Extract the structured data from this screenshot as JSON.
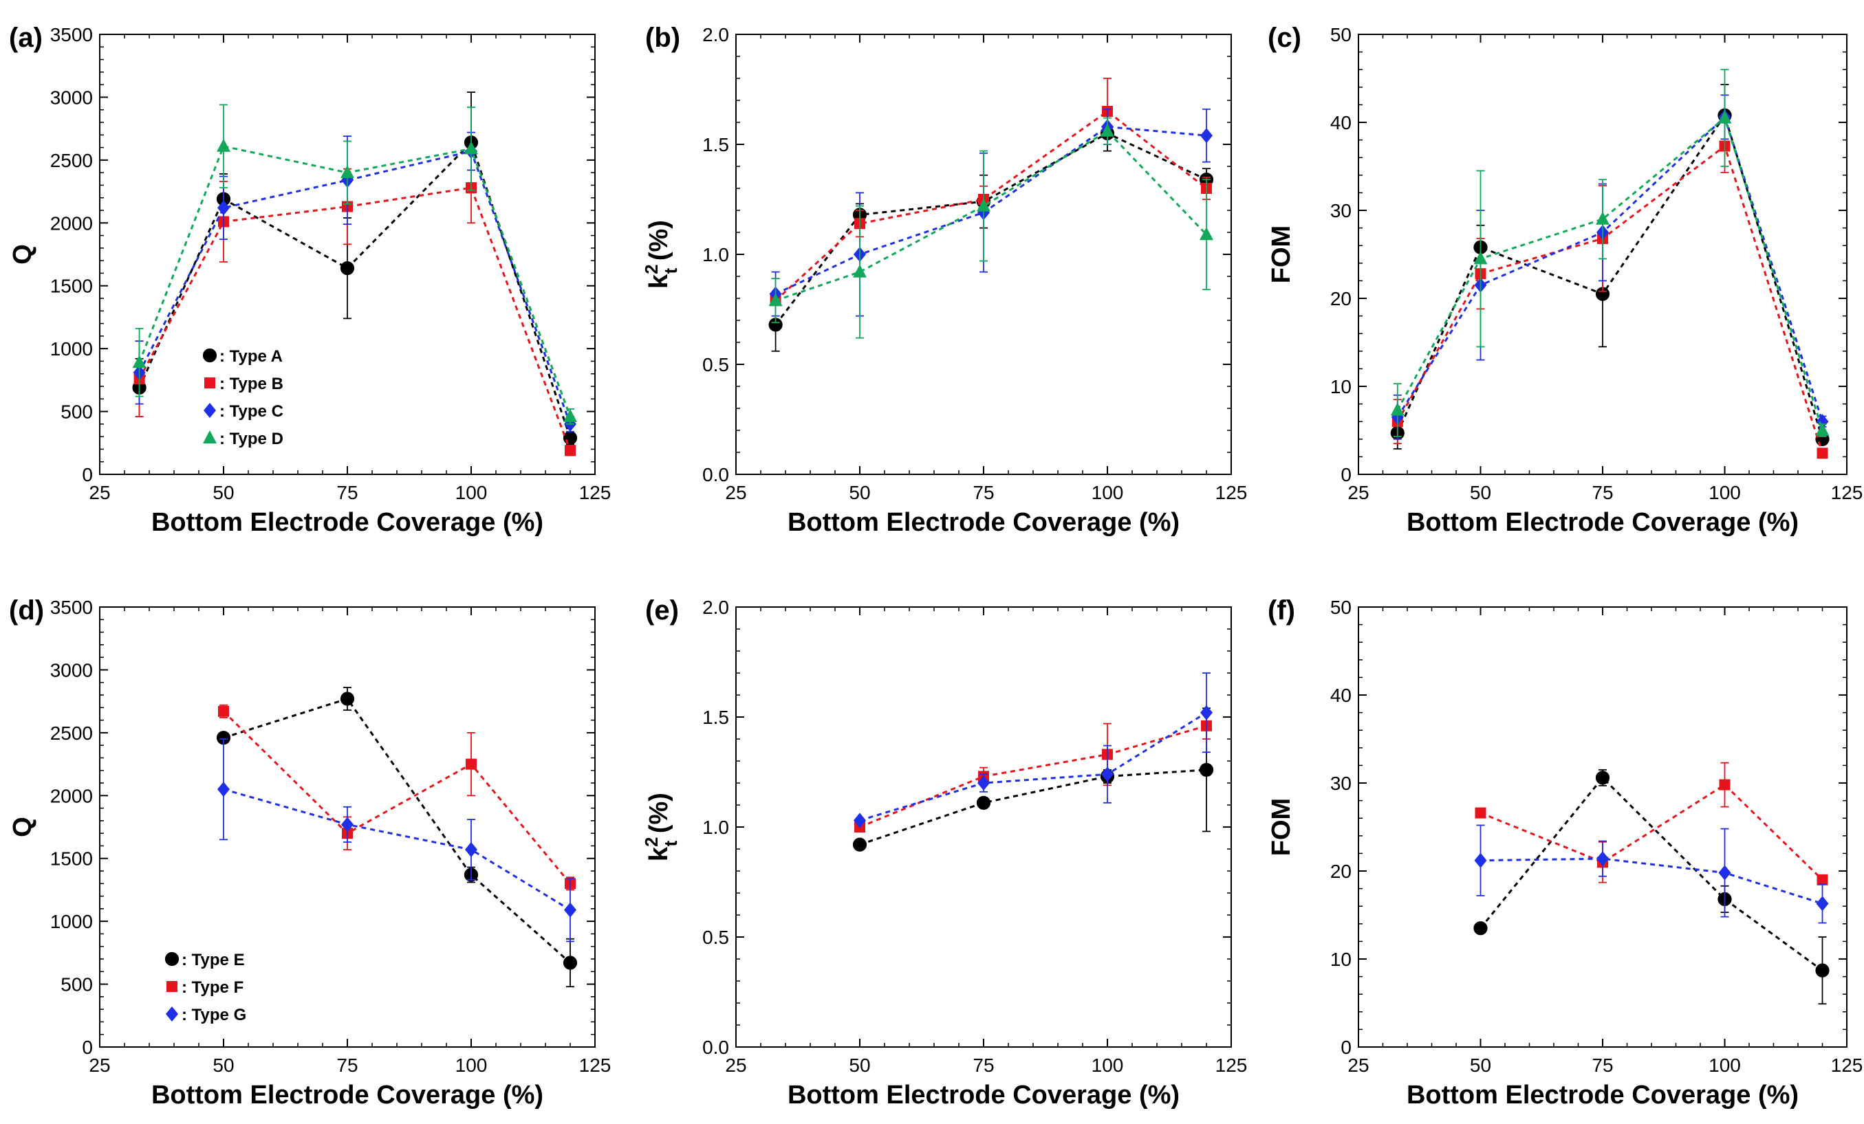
{
  "chart_data": [
    {
      "panel": "(a)",
      "type": "line",
      "xlabel": "Bottom Electrode Coverage (%)",
      "ylabel": "Q",
      "xlim": [
        25,
        125
      ],
      "xticks": [
        25,
        50,
        75,
        100,
        125
      ],
      "ylim": [
        0,
        3500
      ],
      "yticks": [
        0,
        500,
        1000,
        1500,
        2000,
        2500,
        3000,
        3500
      ],
      "legend": {
        "placement": "lower-left",
        "entries": [
          ": Type A",
          ": Type B",
          ": Type C",
          ": Type D"
        ]
      },
      "series": [
        {
          "name": "Type A",
          "color": "#000000",
          "marker": "circle",
          "x": [
            33,
            50,
            75,
            100,
            120
          ],
          "y": [
            690,
            2190,
            1640,
            2640,
            290
          ],
          "err": [
            230,
            200,
            400,
            400,
            50
          ]
        },
        {
          "name": "Type B",
          "color": "#e8141b",
          "marker": "square",
          "x": [
            33,
            50,
            75,
            100,
            120
          ],
          "y": [
            760,
            2010,
            2130,
            2280,
            190
          ],
          "err": [
            300,
            320,
            300,
            280,
            40
          ]
        },
        {
          "name": "Type C",
          "color": "#1f2fe8",
          "marker": "diamond",
          "x": [
            33,
            50,
            75,
            100,
            120
          ],
          "y": [
            810,
            2120,
            2340,
            2570,
            400
          ],
          "err": [
            250,
            250,
            350,
            150,
            60
          ]
        },
        {
          "name": "Type D",
          "color": "#12a85a",
          "marker": "triangle",
          "x": [
            33,
            50,
            75,
            100,
            120
          ],
          "y": [
            890,
            2610,
            2400,
            2590,
            460
          ],
          "err": [
            270,
            330,
            250,
            330,
            60
          ]
        }
      ]
    },
    {
      "panel": "(b)",
      "type": "line",
      "xlabel": "Bottom Electrode Coverage (%)",
      "ylabel": "k",
      "ylabel_sup": "2",
      "ylabel_sub": "t",
      "ylabel_rest": " (%)",
      "xlim": [
        25,
        125
      ],
      "xticks": [
        25,
        50,
        75,
        100,
        125
      ],
      "ylim": [
        0,
        2.0
      ],
      "yticks": [
        0.0,
        0.5,
        1.0,
        1.5,
        2.0
      ],
      "series": [
        {
          "name": "Type A",
          "color": "#000000",
          "marker": "circle",
          "x": [
            33,
            50,
            75,
            100,
            120
          ],
          "y": [
            0.68,
            1.18,
            1.24,
            1.55,
            1.34
          ],
          "err": [
            0.12,
            0.05,
            0.12,
            0.08,
            0.05
          ]
        },
        {
          "name": "Type B",
          "color": "#e8141b",
          "marker": "square",
          "x": [
            33,
            50,
            75,
            100,
            120
          ],
          "y": [
            0.79,
            1.14,
            1.25,
            1.65,
            1.3
          ],
          "err": [
            0.1,
            0.06,
            0.06,
            0.15,
            0.05
          ]
        },
        {
          "name": "Type C",
          "color": "#1f2fe8",
          "marker": "diamond",
          "x": [
            33,
            50,
            75,
            100,
            120
          ],
          "y": [
            0.82,
            1.0,
            1.19,
            1.58,
            1.54
          ],
          "err": [
            0.1,
            0.28,
            0.27,
            0.08,
            0.12
          ]
        },
        {
          "name": "Type D",
          "color": "#12a85a",
          "marker": "triangle",
          "x": [
            33,
            50,
            75,
            100,
            120
          ],
          "y": [
            0.79,
            0.92,
            1.22,
            1.56,
            1.09
          ],
          "err": [
            0.1,
            0.3,
            0.25,
            0.06,
            0.25
          ]
        }
      ]
    },
    {
      "panel": "(c)",
      "type": "line",
      "xlabel": "Bottom Electrode Coverage (%)",
      "ylabel": "FOM",
      "xlim": [
        25,
        125
      ],
      "xticks": [
        25,
        50,
        75,
        100,
        125
      ],
      "ylim": [
        0,
        50
      ],
      "yticks": [
        0,
        10,
        20,
        30,
        40,
        50
      ],
      "series": [
        {
          "name": "Type A",
          "color": "#000000",
          "marker": "circle",
          "x": [
            33,
            50,
            75,
            100,
            120
          ],
          "y": [
            4.7,
            25.8,
            20.5,
            40.8,
            4.0
          ],
          "err": [
            1.8,
            2.5,
            6.0,
            3.5,
            0.6
          ]
        },
        {
          "name": "Type B",
          "color": "#e8141b",
          "marker": "square",
          "x": [
            33,
            50,
            75,
            100,
            120
          ],
          "y": [
            6.0,
            22.8,
            26.8,
            37.3,
            2.4
          ],
          "err": [
            2.5,
            4.0,
            6.0,
            3.0,
            0.4
          ]
        },
        {
          "name": "Type C",
          "color": "#1f2fe8",
          "marker": "diamond",
          "x": [
            33,
            50,
            75,
            100,
            120
          ],
          "y": [
            6.5,
            21.5,
            27.5,
            40.6,
            6.0
          ],
          "err": [
            2.5,
            8.5,
            5.5,
            2.5,
            0.6
          ]
        },
        {
          "name": "Type D",
          "color": "#12a85a",
          "marker": "triangle",
          "x": [
            33,
            50,
            75,
            100,
            120
          ],
          "y": [
            7.3,
            24.5,
            29.0,
            40.5,
            5.0
          ],
          "err": [
            3.0,
            10.0,
            4.5,
            5.5,
            0.7
          ]
        }
      ]
    },
    {
      "panel": "(d)",
      "type": "line",
      "xlabel": "Bottom Electrode Coverage (%)",
      "ylabel": "Q",
      "xlim": [
        25,
        125
      ],
      "xticks": [
        25,
        50,
        75,
        100,
        125
      ],
      "ylim": [
        0,
        3500
      ],
      "yticks": [
        0,
        500,
        1000,
        1500,
        2000,
        2500,
        3000,
        3500
      ],
      "legend": {
        "placement": "lower-left",
        "entries": [
          ": Type E",
          ": Type F",
          ": Type G"
        ]
      },
      "series": [
        {
          "name": "Type E",
          "color": "#000000",
          "marker": "circle",
          "x": [
            50,
            75,
            100,
            120
          ],
          "y": [
            2460,
            2770,
            1370,
            670
          ],
          "err": [
            0,
            90,
            60,
            190
          ]
        },
        {
          "name": "Type F",
          "color": "#e8141b",
          "marker": "square",
          "x": [
            50,
            75,
            100,
            120
          ],
          "y": [
            2670,
            1700,
            2250,
            1300
          ],
          "err": [
            50,
            130,
            250,
            50
          ]
        },
        {
          "name": "Type G",
          "color": "#1f2fe8",
          "marker": "diamond",
          "x": [
            50,
            75,
            100,
            120
          ],
          "y": [
            2050,
            1770,
            1570,
            1090
          ],
          "err": [
            400,
            140,
            240,
            250
          ]
        }
      ]
    },
    {
      "panel": "(e)",
      "type": "line",
      "xlabel": "Bottom Electrode Coverage (%)",
      "ylabel": "k",
      "ylabel_sup": "2",
      "ylabel_sub": "t",
      "ylabel_rest": " (%)",
      "xlim": [
        25,
        125
      ],
      "xticks": [
        25,
        50,
        75,
        100,
        125
      ],
      "ylim": [
        0,
        2.0
      ],
      "yticks": [
        0.0,
        0.5,
        1.0,
        1.5,
        2.0
      ],
      "series": [
        {
          "name": "Type E",
          "color": "#000000",
          "marker": "circle",
          "x": [
            50,
            75,
            100,
            120
          ],
          "y": [
            0.92,
            1.11,
            1.23,
            1.26
          ],
          "err": [
            0,
            0.01,
            0.03,
            0.28
          ]
        },
        {
          "name": "Type F",
          "color": "#e8141b",
          "marker": "square",
          "x": [
            50,
            75,
            100,
            120
          ],
          "y": [
            1.0,
            1.23,
            1.33,
            1.46
          ],
          "err": [
            0.01,
            0.04,
            0.14,
            0.06
          ]
        },
        {
          "name": "Type G",
          "color": "#1f2fe8",
          "marker": "diamond",
          "x": [
            50,
            75,
            100,
            120
          ],
          "y": [
            1.03,
            1.2,
            1.24,
            1.52
          ],
          "err": [
            0.01,
            0.04,
            0.13,
            0.18
          ]
        }
      ]
    },
    {
      "panel": "(f)",
      "type": "line",
      "xlabel": "Bottom Electrode Coverage (%)",
      "ylabel": "FOM",
      "xlim": [
        25,
        125
      ],
      "xticks": [
        25,
        50,
        75,
        100,
        125
      ],
      "ylim": [
        0,
        50
      ],
      "yticks": [
        0,
        10,
        20,
        30,
        40,
        50
      ],
      "series": [
        {
          "name": "Type E",
          "color": "#000000",
          "marker": "circle",
          "x": [
            50,
            75,
            100,
            120
          ],
          "y": [
            13.5,
            30.6,
            16.8,
            8.7
          ],
          "err": [
            0,
            0.9,
            1.5,
            3.8
          ]
        },
        {
          "name": "Type F",
          "color": "#e8141b",
          "marker": "square",
          "x": [
            50,
            75,
            100,
            120
          ],
          "y": [
            26.6,
            21.0,
            29.8,
            19.0
          ],
          "err": [
            0,
            2.3,
            2.5,
            0.3
          ]
        },
        {
          "name": "Type G",
          "color": "#1f2fe8",
          "marker": "diamond",
          "x": [
            50,
            75,
            100,
            120
          ],
          "y": [
            21.2,
            21.4,
            19.8,
            16.3
          ],
          "err": [
            4.0,
            2.0,
            5.0,
            2.2
          ]
        }
      ]
    }
  ]
}
